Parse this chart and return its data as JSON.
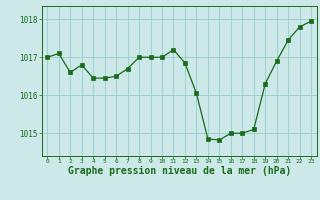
{
  "x": [
    0,
    1,
    2,
    3,
    4,
    5,
    6,
    7,
    8,
    9,
    10,
    11,
    12,
    13,
    14,
    15,
    16,
    17,
    18,
    19,
    20,
    21,
    22,
    23
  ],
  "y": [
    1017.0,
    1017.1,
    1016.6,
    1016.8,
    1016.45,
    1016.45,
    1016.5,
    1016.7,
    1017.0,
    1017.0,
    1017.0,
    1017.2,
    1016.85,
    1016.05,
    1014.85,
    1014.82,
    1015.0,
    1015.0,
    1015.1,
    1016.3,
    1016.9,
    1017.45,
    1017.8,
    1017.95
  ],
  "line_color": "#1a6b1a",
  "marker_color": "#1a6b1a",
  "bg_color": "#cce8e8",
  "grid_color": "#99cccc",
  "xlabel": "Graphe pression niveau de la mer (hPa)",
  "xlabel_fontsize": 7,
  "ytick_labels": [
    "1015",
    "1016",
    "1017",
    "1018"
  ],
  "ytick_values": [
    1015,
    1016,
    1017,
    1018
  ],
  "ylim": [
    1014.4,
    1018.35
  ],
  "xlim": [
    -0.5,
    23.5
  ],
  "xtick_fontsize": 4.5,
  "ytick_fontsize": 5.5
}
